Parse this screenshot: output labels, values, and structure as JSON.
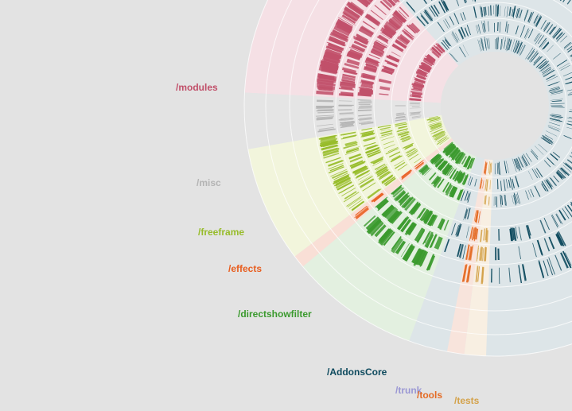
{
  "labels": {
    "modules": "/modules",
    "misc": "/misc",
    "freeframe": "/freeframe",
    "effects": "/effects",
    "directshowfilter": "/directshowfilter",
    "addonscore": "/AddonsCore",
    "trunk": "/trunk",
    "tools": "/tools",
    "tests": "/tests"
  },
  "colors": {
    "background": "#e3e3e3",
    "modules": "#c1506a",
    "misc": "#b4b4b4",
    "freeframe": "#97bc2a",
    "effects": "#e85d1e",
    "directshowfilter": "#3b9a2e",
    "addonscore": "#0e4a5e",
    "trunk": "#9a97d4",
    "tools": "#e46b24",
    "tests": "#d4a24a"
  },
  "sectors": [
    {
      "key": "addonscore",
      "color": "#0e4a5e",
      "fill": "#dde5e8"
    },
    {
      "key": "modules",
      "color": "#c1506a",
      "fill": "#f5e0e5"
    },
    {
      "key": "misc",
      "color": "#b4b4b4",
      "fill": "#e5e5e5"
    },
    {
      "key": "freeframe",
      "color": "#97bc2a",
      "fill": "#f2f5dc"
    },
    {
      "key": "effects",
      "color": "#e85d1e",
      "fill": "#f9dfd6"
    },
    {
      "key": "directshowfilter",
      "color": "#3b9a2e",
      "fill": "#e3f0e0"
    },
    {
      "key": "addonscore",
      "color": "#0e4a5e",
      "fill": "#dde5e8"
    },
    {
      "key": "tools",
      "color": "#e46b24",
      "fill": "#f8e4dc"
    },
    {
      "key": "tests",
      "color": "#d4a24a",
      "fill": "#f8efe2"
    },
    {
      "key": "addonscore",
      "color": "#0e4a5e",
      "fill": "#dde5e8"
    }
  ]
}
